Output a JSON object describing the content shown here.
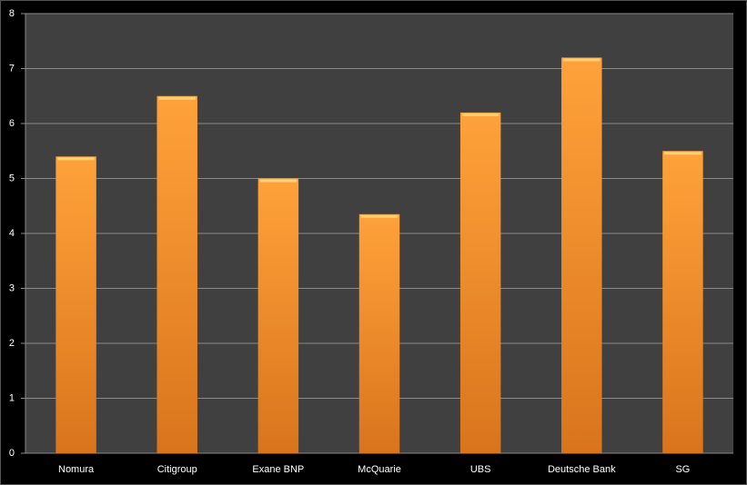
{
  "chart_data": {
    "type": "bar",
    "categories": [
      "Nomura",
      "Citigroup",
      "Exane BNP",
      "McQuarie",
      "UBS",
      "Deutsche Bank",
      "SG"
    ],
    "values": [
      5.4,
      6.5,
      5.0,
      4.35,
      6.2,
      7.2,
      5.5
    ],
    "color": "#f7962a",
    "ylim": [
      0,
      8
    ],
    "yticks": [
      0,
      1,
      2,
      3,
      4,
      5,
      6,
      7,
      8
    ],
    "grid": true
  }
}
